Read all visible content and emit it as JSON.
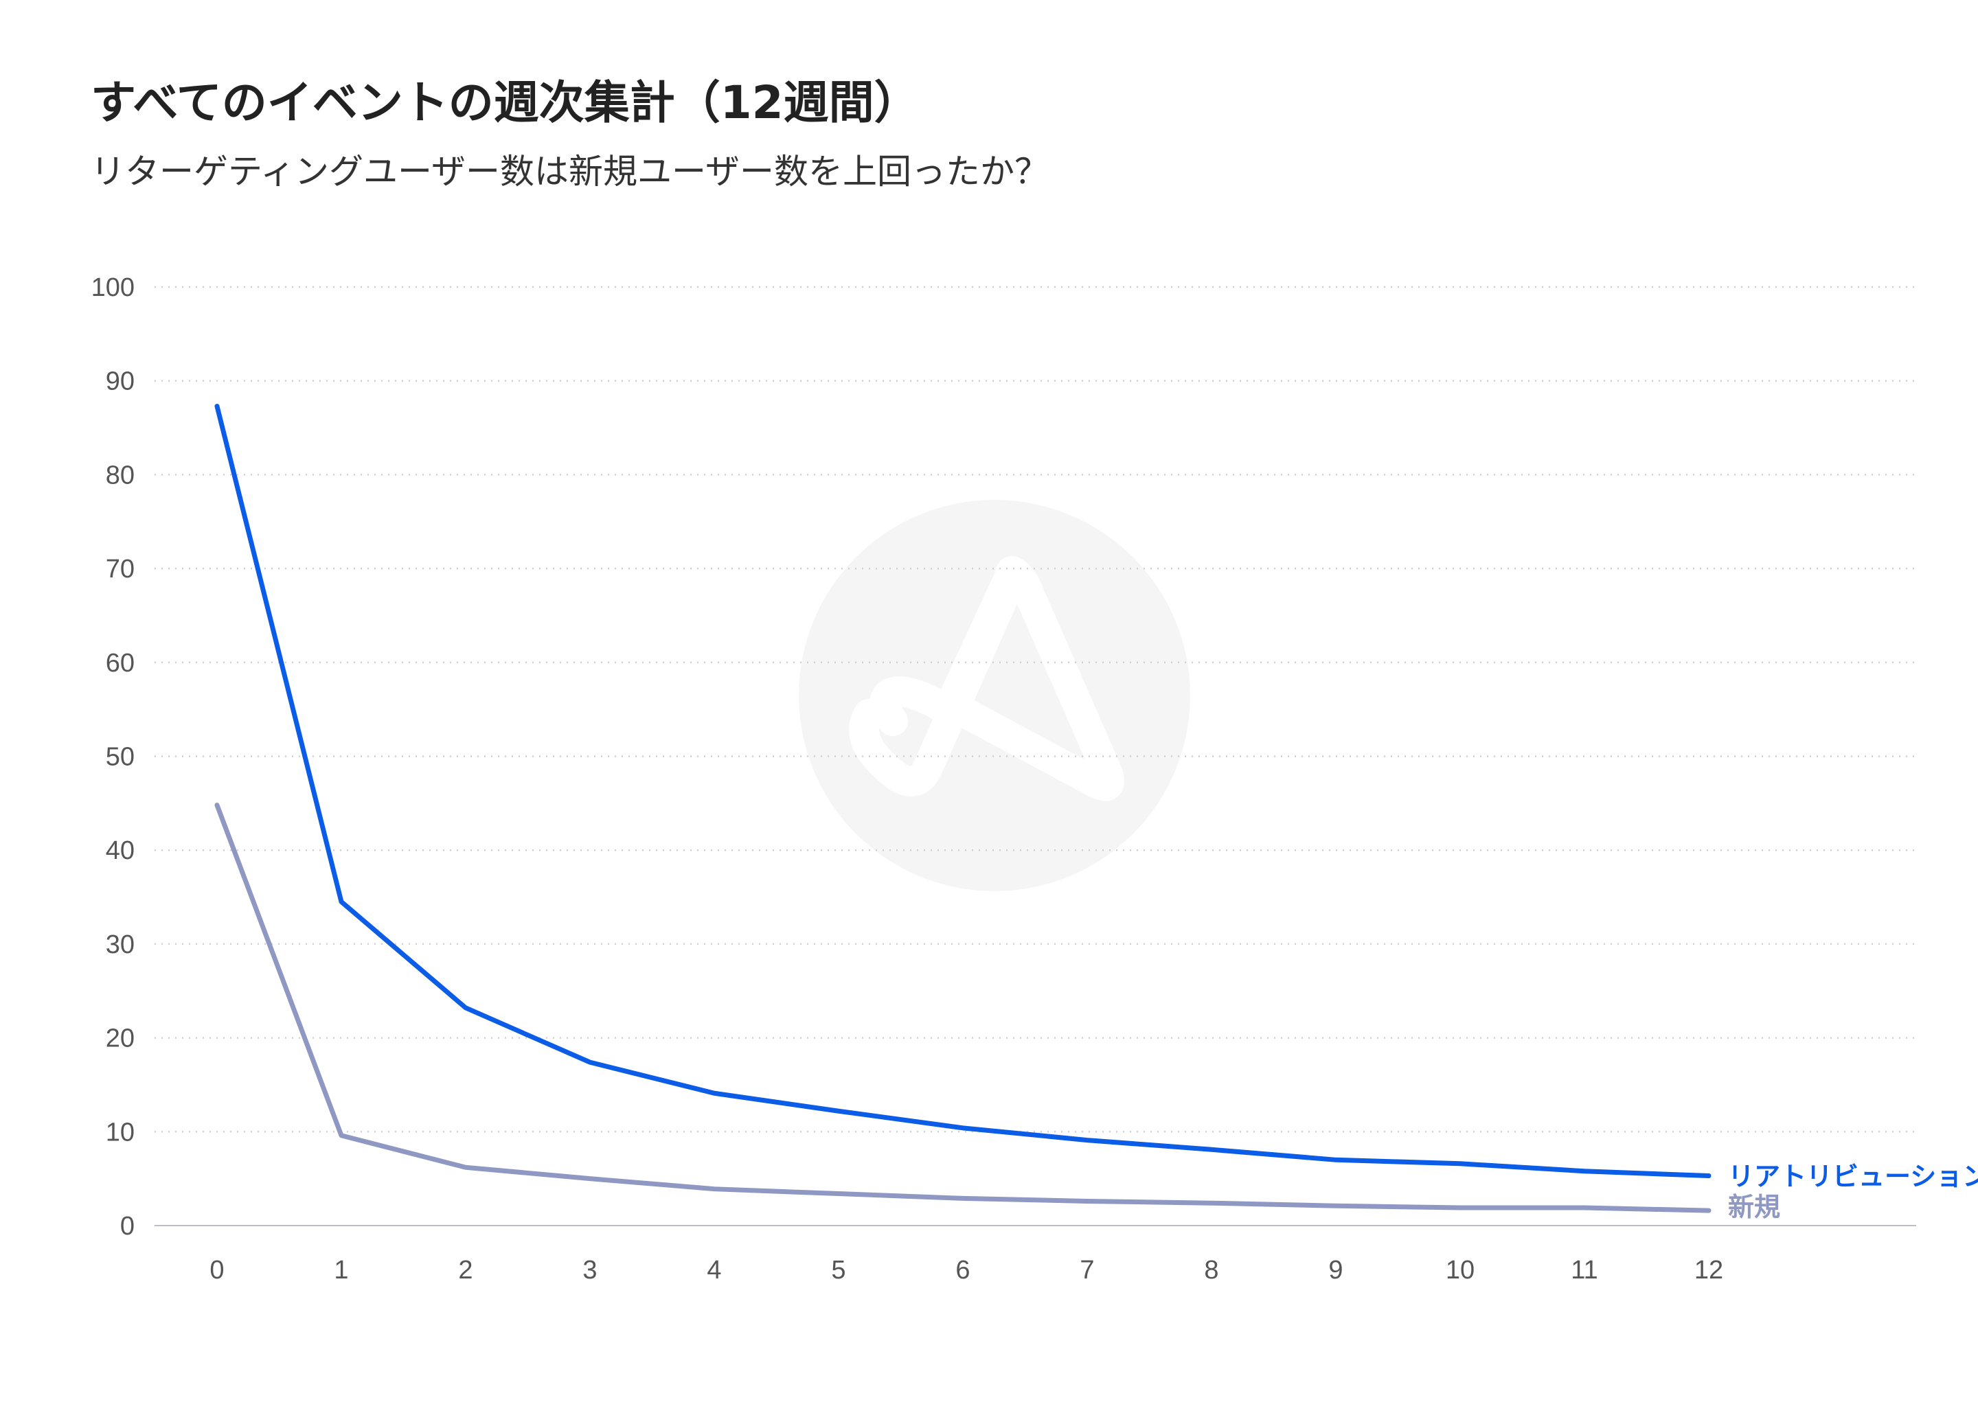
{
  "header": {
    "title": "すべてのイベントの週次集計（12週間）",
    "subtitle": "リターゲティングユーザー数は新規ユーザー数を上回ったか？"
  },
  "chart_data": {
    "type": "line",
    "x": [
      0,
      1,
      2,
      3,
      4,
      5,
      6,
      7,
      8,
      9,
      10,
      11,
      12
    ],
    "xlim": [
      0,
      12
    ],
    "ylim": [
      0,
      100
    ],
    "yticks": [
      0,
      10,
      20,
      30,
      40,
      50,
      60,
      70,
      80,
      90,
      100
    ],
    "grid": "horizontal-dotted",
    "legend": "inline-right",
    "series": [
      {
        "name": "リアトリビューション",
        "color": "#0b5ce6",
        "values": [
          87.3,
          34.5,
          23.2,
          17.4,
          14.1,
          12.2,
          10.4,
          9.1,
          8.1,
          7.0,
          6.6,
          5.8,
          5.3
        ]
      },
      {
        "name": "新規",
        "color": "#8f98c2",
        "values": [
          44.8,
          9.6,
          6.2,
          5.0,
          3.9,
          3.4,
          2.9,
          2.6,
          2.4,
          2.1,
          1.9,
          1.9,
          1.6
        ]
      }
    ]
  }
}
